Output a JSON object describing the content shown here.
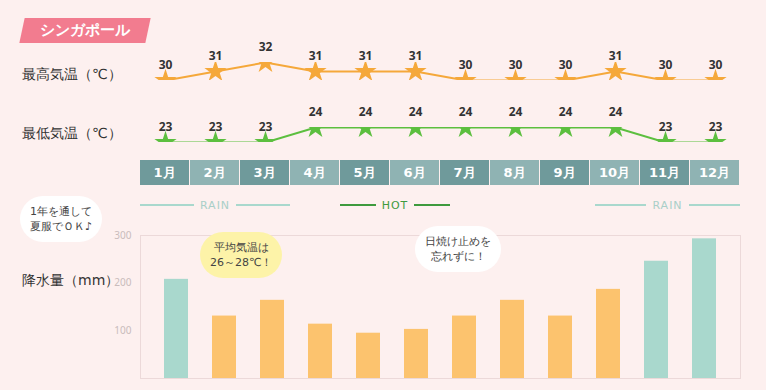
{
  "title": "シンガポール",
  "seasons": [
    "RAIN",
    "HOT",
    "RAIN"
  ],
  "annotations": [
    "1年を通して\n夏服でＯＫ♪",
    "平均気温は\n26～28℃！",
    "日焼け止めを\n忘れずに！"
  ],
  "chart_data": [
    {
      "type": "line",
      "title": "最高気温（℃）",
      "categories": [
        "1月",
        "2月",
        "3月",
        "4月",
        "5月",
        "6月",
        "7月",
        "8月",
        "9月",
        "10月",
        "11月",
        "12月"
      ],
      "values": [
        30,
        31,
        32,
        31,
        31,
        31,
        30,
        30,
        30,
        31,
        30,
        30
      ],
      "color": "#f5a83a",
      "marker": "star",
      "data_labels": true,
      "tick_labels": false,
      "ylim": [
        30,
        32
      ]
    },
    {
      "type": "line",
      "title": "最低気温（℃）",
      "categories": [
        "1月",
        "2月",
        "3月",
        "4月",
        "5月",
        "6月",
        "7月",
        "8月",
        "9月",
        "10月",
        "11月",
        "12月"
      ],
      "values": [
        23,
        23,
        23,
        24,
        24,
        24,
        24,
        24,
        24,
        24,
        23,
        23
      ],
      "color": "#5cbf3f",
      "marker": "star",
      "data_labels": true,
      "tick_labels": false,
      "ylim": [
        23,
        24
      ]
    },
    {
      "type": "bar",
      "title": "降水量（mm）",
      "categories": [
        "1月",
        "2月",
        "3月",
        "4月",
        "5月",
        "6月",
        "7月",
        "8月",
        "9月",
        "10月",
        "11月",
        "12月"
      ],
      "values": [
        208,
        131,
        164,
        114,
        95,
        103,
        131,
        164,
        131,
        187,
        246,
        293
      ],
      "colors": [
        "#a9d8cd",
        "#fcc36e",
        "#fcc36e",
        "#fcc36e",
        "#fcc36e",
        "#fcc36e",
        "#fcc36e",
        "#fcc36e",
        "#fcc36e",
        "#fcc36e",
        "#a9d8cd",
        "#a9d8cd"
      ],
      "ylim": [
        0,
        300
      ],
      "yticks": [
        100,
        200,
        300
      ],
      "tick_labels": "y",
      "grid": false
    }
  ]
}
